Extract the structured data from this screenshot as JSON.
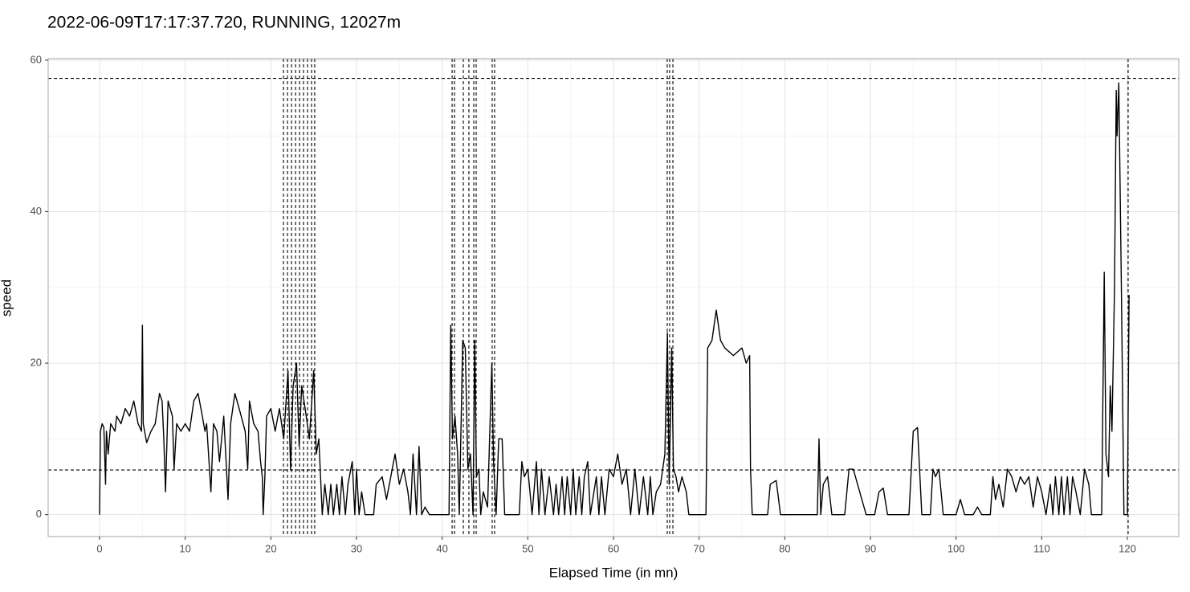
{
  "chart_data": {
    "type": "line",
    "title": "2022-06-09T17:17:37.720, RUNNING, 12027m",
    "xlabel": "Elapsed Time (in mn)",
    "ylabel": "speed",
    "xlim": [
      -6,
      126
    ],
    "ylim": [
      -2.9,
      60.2
    ],
    "xticks": [
      0,
      10,
      20,
      30,
      40,
      50,
      60,
      70,
      80,
      90,
      100,
      110,
      120
    ],
    "yticks": [
      0,
      20,
      40,
      60
    ],
    "grid": true,
    "color": "#000000",
    "reference_color": "#000000",
    "hlines": [
      57.6,
      5.9
    ],
    "vlines": [
      21.47,
      21.94,
      22.41,
      22.88,
      23.35,
      23.81,
      24.28,
      24.75,
      25.12,
      41.16,
      41.44,
      42.47,
      43.12,
      43.69,
      43.97,
      45.84,
      46.12,
      66.28,
      66.56,
      66.94,
      120.09
    ],
    "x": [
      0,
      0.1,
      0.3,
      0.5,
      0.7,
      0.8,
      1,
      1.3,
      1.8,
      2,
      2.5,
      3,
      3.5,
      4,
      4.5,
      4.9,
      5,
      5.1,
      5.5,
      6,
      6.5,
      7,
      7.3,
      7.5,
      7.7,
      8,
      8.5,
      8.7,
      9,
      9.5,
      10,
      10.5,
      11,
      11.5,
      12,
      12.3,
      12.5,
      13,
      13.3,
      13.7,
      14,
      14.5,
      15,
      15.3,
      15.8,
      16.3,
      17,
      17.3,
      17.5,
      18,
      18.5,
      18.8,
      19,
      19.1,
      19.3,
      19.5,
      20,
      20.5,
      21,
      21.5,
      22,
      22.3,
      22.6,
      23,
      23.3,
      23.6,
      24,
      24.5,
      25,
      25.3,
      25.6,
      26,
      26.3,
      26.7,
      27,
      27.3,
      27.7,
      28,
      28.3,
      28.7,
      29,
      29.5,
      29.8,
      30,
      30.3,
      30.6,
      31,
      32,
      32.3,
      33,
      33.5,
      34,
      34.5,
      35,
      35.5,
      36,
      36.3,
      36.6,
      37,
      37.3,
      37.6,
      38,
      38.5,
      40.8,
      41,
      41.2,
      41.5,
      41.8,
      42,
      42.4,
      42.7,
      43,
      43.3,
      43.6,
      43.8,
      44,
      44.3,
      44.5,
      44.8,
      45.3,
      45.8,
      46,
      46.3,
      46.6,
      47,
      47.3,
      49,
      49.3,
      49.6,
      50,
      50.5,
      51,
      51.3,
      51.6,
      52,
      52.5,
      53,
      53.3,
      53.6,
      54,
      54.3,
      54.6,
      55,
      55.3,
      55.6,
      56,
      56.3,
      56.6,
      57,
      57.3,
      58,
      58.3,
      58.6,
      59,
      59.5,
      60,
      60.5,
      61,
      61.5,
      62,
      62.5,
      63,
      63.5,
      64,
      64.3,
      64.6,
      65,
      65.5,
      66,
      66.3,
      66.5,
      66.8,
      67,
      67.3,
      67.6,
      68,
      68.5,
      68.8,
      70,
      70.8,
      71,
      71.5,
      72,
      72.5,
      73,
      74,
      75,
      75.5,
      75.9,
      76,
      76.2,
      78,
      78.3,
      79,
      79.5,
      83.8,
      84,
      84.2,
      84.5,
      85,
      85.5,
      87,
      87.5,
      88,
      88.5,
      89,
      89.5,
      90.5,
      91,
      91.5,
      92,
      94.5,
      95,
      95.5,
      96,
      97,
      97.3,
      97.6,
      98,
      98.5,
      100,
      100.5,
      101,
      102,
      102.5,
      103,
      104,
      104.3,
      104.6,
      105,
      105.5,
      106,
      106.5,
      107,
      107.5,
      108,
      108.5,
      109,
      109.5,
      110,
      110.5,
      111,
      111.3,
      111.6,
      112,
      112.3,
      112.6,
      113,
      113.3,
      113.6,
      114,
      114.5,
      115,
      115.5,
      115.8,
      117,
      117.3,
      117.5,
      117.8,
      118,
      118.2,
      118.5,
      118.7,
      118.8,
      119,
      119.3,
      119.6,
      120,
      120.2
    ],
    "values": [
      0,
      11,
      12,
      11.5,
      4,
      11,
      8,
      12,
      11,
      13,
      12,
      14,
      13,
      15,
      12,
      11,
      25,
      12,
      9.5,
      11,
      12,
      16,
      15,
      10,
      3,
      15,
      13,
      6,
      12,
      11,
      12,
      11,
      15,
      16,
      13,
      11,
      12,
      3,
      12,
      11,
      7,
      13,
      2,
      12,
      16,
      14,
      11,
      6,
      15,
      12,
      11,
      7,
      5,
      0,
      5,
      13,
      14,
      11,
      14,
      10,
      19,
      6,
      17,
      20,
      9,
      17,
      14,
      10,
      19,
      8,
      10,
      0,
      4,
      0,
      4,
      0,
      4,
      0,
      5,
      0,
      4,
      7,
      0,
      6,
      0,
      3,
      0,
      0,
      4,
      5,
      2,
      5,
      8,
      4,
      6,
      3,
      0,
      8,
      0,
      9,
      0,
      1,
      0,
      0,
      25,
      10,
      13,
      8,
      0,
      23,
      22,
      6,
      8,
      0,
      23,
      5,
      6,
      0,
      3,
      1,
      20,
      7,
      0,
      10,
      10,
      0,
      0,
      7,
      5,
      6,
      0,
      7,
      0,
      6,
      0,
      5,
      0,
      4,
      0,
      5,
      0,
      5,
      0,
      6,
      0,
      5,
      0,
      5,
      7,
      0,
      5,
      0,
      5,
      0,
      6,
      5,
      8,
      4,
      6,
      0,
      6,
      0,
      5,
      0,
      5,
      0,
      3,
      4,
      8,
      24,
      4,
      22,
      6,
      5,
      3,
      5,
      3,
      0,
      0,
      0,
      22,
      23,
      27,
      23,
      22,
      21,
      22,
      20,
      21,
      6,
      0,
      0,
      4,
      4.5,
      0,
      0,
      10,
      0,
      4,
      5,
      0,
      0,
      6,
      6,
      4,
      2,
      0,
      0,
      3,
      3.5,
      0,
      0,
      11,
      11.5,
      0,
      0,
      6,
      5,
      6,
      0,
      0,
      2,
      0,
      0,
      1,
      0,
      0,
      5,
      2,
      4,
      1,
      6,
      5,
      3,
      5,
      4,
      5,
      1,
      5,
      3,
      0,
      4,
      0,
      5,
      0,
      5,
      0,
      5,
      0,
      5,
      3,
      0,
      6,
      4,
      0,
      0,
      32,
      8,
      5,
      17,
      11,
      30,
      56,
      50,
      57,
      30,
      0,
      0,
      29
    ]
  }
}
